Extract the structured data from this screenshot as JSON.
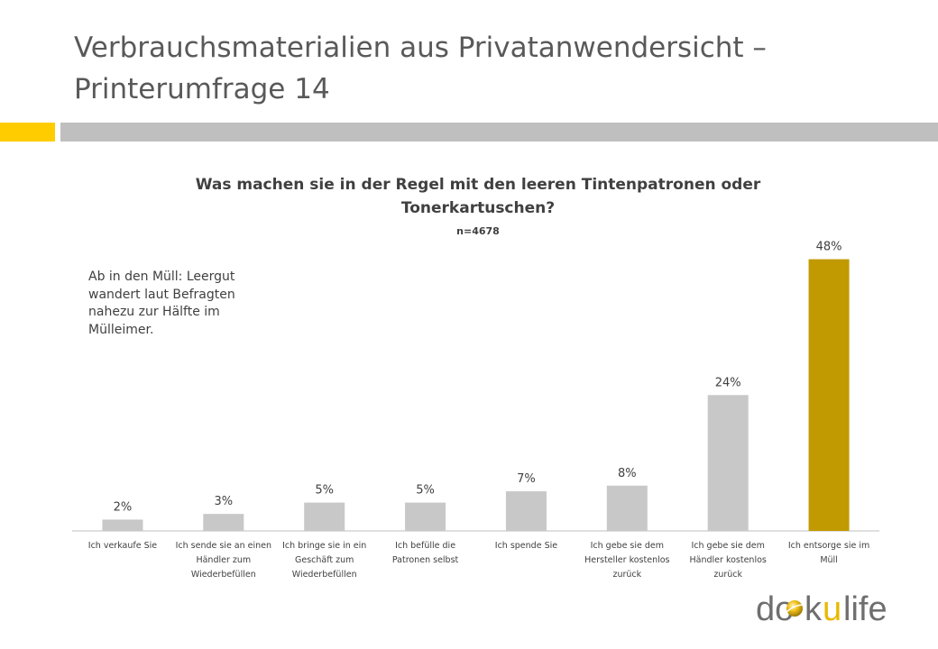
{
  "slide": {
    "title": "Verbrauchsmaterialien aus Privatanwendersicht  – Printerumfrage 14",
    "accent_color": "#FFCC00",
    "rule_color": "#BFBFBF"
  },
  "annotation": {
    "text": "Ab in den Müll: Leergut wandert laut Befragten nahezu zur Hälfte im Mülleimer."
  },
  "chart_data": {
    "type": "bar",
    "title": "Was machen sie in der Regel mit den leeren Tintenpatronen oder Tonerkartuschen?",
    "subtitle": "n=4678",
    "categories": [
      "Ich verkaufe Sie",
      "Ich sende sie an einen Händler zum Wiederbefüllen",
      "Ich bringe sie in ein Geschäft zum Wiederbefüllen",
      "Ich befülle die Patronen selbst",
      "Ich spende Sie",
      "Ich gebe sie dem Hersteller kostenlos zurück",
      "Ich gebe sie dem Händler kostenlos zurück",
      "Ich entsorge sie im Müll"
    ],
    "values": [
      2,
      3,
      5,
      5,
      7,
      8,
      24,
      48
    ],
    "value_labels": [
      "2%",
      "3%",
      "5%",
      "5%",
      "7%",
      "8%",
      "24%",
      "48%"
    ],
    "unit": "%",
    "ylim": [
      0,
      50
    ],
    "grid": false,
    "legend": "none",
    "bar_color": "#C8C8C8",
    "highlight_color": "#C09A00",
    "highlight_index": 7
  },
  "logo": {
    "text_part1": "do",
    "text_part2": "k",
    "text_part3": "u",
    "text_part4": "life",
    "dark_color": "#6F6F6F",
    "accent_color": "#E9B800"
  }
}
